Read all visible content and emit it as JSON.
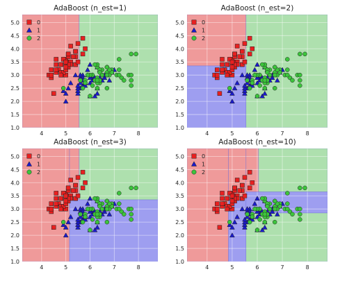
{
  "figure": {
    "layout": "2x2 grid"
  },
  "colors": {
    "region_0": "#ef9a9a",
    "region_1": "#9e9ef0",
    "region_2": "#aee0ae",
    "marker_0": "#e82020",
    "marker_1": "#1a1acc",
    "marker_2": "#3cc43c",
    "grid": "#ffffff",
    "edge": "#222222"
  },
  "chart_data": [
    {
      "type": "scatter",
      "title": "AdaBoost (n_est=1)",
      "xlim": [
        3.2,
        8.8
      ],
      "ylim": [
        1.0,
        5.3
      ],
      "xticks": [
        4,
        5,
        6,
        7,
        8
      ],
      "yticks": [
        1.0,
        1.5,
        2.0,
        2.5,
        3.0,
        3.5,
        4.0,
        4.5,
        5.0
      ],
      "grid": true,
      "legend": "top-left",
      "legend_entries": [
        "0",
        "1",
        "2"
      ],
      "regions": [
        {
          "cls": 0,
          "x": [
            3.2,
            5.55
          ],
          "y": [
            1.0,
            5.3
          ]
        },
        {
          "cls": 2,
          "x": [
            5.55,
            8.8
          ],
          "y": [
            1.0,
            5.3
          ]
        }
      ]
    },
    {
      "type": "scatter",
      "title": "AdaBoost (n_est=2)",
      "xlim": [
        3.2,
        8.8
      ],
      "ylim": [
        1.0,
        5.3
      ],
      "xticks": [
        4,
        5,
        6,
        7,
        8
      ],
      "yticks": [
        1.0,
        1.5,
        2.0,
        2.5,
        3.0,
        3.5,
        4.0,
        4.5,
        5.0
      ],
      "grid": true,
      "legend": "top-left",
      "legend_entries": [
        "0",
        "1",
        "2"
      ],
      "regions": [
        {
          "cls": 0,
          "x": [
            3.2,
            5.55
          ],
          "y": [
            3.35,
            5.3
          ]
        },
        {
          "cls": 1,
          "x": [
            3.2,
            5.55
          ],
          "y": [
            1.0,
            3.35
          ]
        },
        {
          "cls": 2,
          "x": [
            5.55,
            8.8
          ],
          "y": [
            1.0,
            5.3
          ]
        }
      ]
    },
    {
      "type": "scatter",
      "title": "AdaBoost (n_est=3)",
      "xlim": [
        3.2,
        8.8
      ],
      "ylim": [
        1.0,
        5.3
      ],
      "xticks": [
        4,
        5,
        6,
        7,
        8
      ],
      "yticks": [
        1.0,
        1.5,
        2.0,
        2.5,
        3.0,
        3.5,
        4.0,
        4.5,
        5.0
      ],
      "grid": true,
      "legend": "top-left",
      "legend_entries": [
        "0",
        "1",
        "2"
      ],
      "regions": [
        {
          "cls": 0,
          "x": [
            3.2,
            5.15
          ],
          "y": [
            1.0,
            5.3
          ]
        },
        {
          "cls": 0,
          "x": [
            5.15,
            5.55
          ],
          "y": [
            3.35,
            5.3
          ]
        },
        {
          "cls": 2,
          "x": [
            5.55,
            8.8
          ],
          "y": [
            3.35,
            5.3
          ]
        },
        {
          "cls": 1,
          "x": [
            5.15,
            8.8
          ],
          "y": [
            1.0,
            3.35
          ]
        }
      ]
    },
    {
      "type": "scatter",
      "title": "AdaBoost (n_est=10)",
      "xlim": [
        3.2,
        8.8
      ],
      "ylim": [
        1.0,
        5.3
      ],
      "xticks": [
        4,
        5,
        6,
        7,
        8
      ],
      "yticks": [
        1.0,
        1.5,
        2.0,
        2.5,
        3.0,
        3.5,
        4.0,
        4.5,
        5.0
      ],
      "grid": true,
      "legend": "top-left",
      "legend_entries": [
        "0",
        "1",
        "2"
      ],
      "regions": [
        {
          "cls": 0,
          "x": [
            3.2,
            4.85
          ],
          "y": [
            1.0,
            5.3
          ]
        },
        {
          "cls": 0,
          "x": [
            4.85,
            5.55
          ],
          "y": [
            3.35,
            5.3
          ]
        },
        {
          "cls": 1,
          "x": [
            4.85,
            5.55
          ],
          "y": [
            1.0,
            3.35
          ]
        },
        {
          "cls": 0,
          "x": [
            5.55,
            6.05
          ],
          "y": [
            3.65,
            5.3
          ]
        },
        {
          "cls": 2,
          "x": [
            6.05,
            8.8
          ],
          "y": [
            3.65,
            5.3
          ]
        },
        {
          "cls": 1,
          "x": [
            5.55,
            8.8
          ],
          "y": [
            2.85,
            3.65
          ]
        },
        {
          "cls": 2,
          "x": [
            5.55,
            8.8
          ],
          "y": [
            1.0,
            2.85
          ]
        }
      ]
    }
  ],
  "points": [
    {
      "x": 5.1,
      "y": 3.5,
      "c": 0
    },
    {
      "x": 4.9,
      "y": 3.0,
      "c": 0
    },
    {
      "x": 4.7,
      "y": 3.2,
      "c": 0
    },
    {
      "x": 4.6,
      "y": 3.1,
      "c": 0
    },
    {
      "x": 5.0,
      "y": 3.6,
      "c": 0
    },
    {
      "x": 5.4,
      "y": 3.9,
      "c": 0
    },
    {
      "x": 4.6,
      "y": 3.4,
      "c": 0
    },
    {
      "x": 5.0,
      "y": 3.4,
      "c": 0
    },
    {
      "x": 4.4,
      "y": 2.9,
      "c": 0
    },
    {
      "x": 4.9,
      "y": 3.1,
      "c": 0
    },
    {
      "x": 5.4,
      "y": 3.7,
      "c": 0
    },
    {
      "x": 4.8,
      "y": 3.4,
      "c": 0
    },
    {
      "x": 4.8,
      "y": 3.0,
      "c": 0
    },
    {
      "x": 4.3,
      "y": 3.0,
      "c": 0
    },
    {
      "x": 5.8,
      "y": 4.0,
      "c": 0
    },
    {
      "x": 5.7,
      "y": 4.4,
      "c": 0
    },
    {
      "x": 5.4,
      "y": 3.9,
      "c": 0
    },
    {
      "x": 5.1,
      "y": 3.5,
      "c": 0
    },
    {
      "x": 5.7,
      "y": 3.8,
      "c": 0
    },
    {
      "x": 5.1,
      "y": 3.8,
      "c": 0
    },
    {
      "x": 5.4,
      "y": 3.4,
      "c": 0
    },
    {
      "x": 5.1,
      "y": 3.7,
      "c": 0
    },
    {
      "x": 4.6,
      "y": 3.6,
      "c": 0
    },
    {
      "x": 5.1,
      "y": 3.3,
      "c": 0
    },
    {
      "x": 4.8,
      "y": 3.4,
      "c": 0
    },
    {
      "x": 5.0,
      "y": 3.0,
      "c": 0
    },
    {
      "x": 5.0,
      "y": 3.4,
      "c": 0
    },
    {
      "x": 5.2,
      "y": 3.5,
      "c": 0
    },
    {
      "x": 5.2,
      "y": 3.4,
      "c": 0
    },
    {
      "x": 4.7,
      "y": 3.2,
      "c": 0
    },
    {
      "x": 4.8,
      "y": 3.1,
      "c": 0
    },
    {
      "x": 5.4,
      "y": 3.4,
      "c": 0
    },
    {
      "x": 5.2,
      "y": 4.1,
      "c": 0
    },
    {
      "x": 5.5,
      "y": 4.2,
      "c": 0
    },
    {
      "x": 4.9,
      "y": 3.1,
      "c": 0
    },
    {
      "x": 5.0,
      "y": 3.2,
      "c": 0
    },
    {
      "x": 5.5,
      "y": 3.5,
      "c": 0
    },
    {
      "x": 4.9,
      "y": 3.6,
      "c": 0
    },
    {
      "x": 4.4,
      "y": 3.0,
      "c": 0
    },
    {
      "x": 5.1,
      "y": 3.4,
      "c": 0
    },
    {
      "x": 5.0,
      "y": 3.5,
      "c": 0
    },
    {
      "x": 4.5,
      "y": 2.3,
      "c": 0
    },
    {
      "x": 4.4,
      "y": 3.2,
      "c": 0
    },
    {
      "x": 5.0,
      "y": 3.5,
      "c": 0
    },
    {
      "x": 5.1,
      "y": 3.8,
      "c": 0
    },
    {
      "x": 4.8,
      "y": 3.0,
      "c": 0
    },
    {
      "x": 5.1,
      "y": 3.8,
      "c": 0
    },
    {
      "x": 4.6,
      "y": 3.2,
      "c": 0
    },
    {
      "x": 5.3,
      "y": 3.7,
      "c": 0
    },
    {
      "x": 5.0,
      "y": 3.3,
      "c": 0
    },
    {
      "x": 7.0,
      "y": 3.2,
      "c": 1
    },
    {
      "x": 6.4,
      "y": 3.2,
      "c": 1
    },
    {
      "x": 6.9,
      "y": 3.1,
      "c": 1
    },
    {
      "x": 5.5,
      "y": 2.3,
      "c": 1
    },
    {
      "x": 6.5,
      "y": 2.8,
      "c": 1
    },
    {
      "x": 5.7,
      "y": 2.8,
      "c": 1
    },
    {
      "x": 6.3,
      "y": 3.3,
      "c": 1
    },
    {
      "x": 4.9,
      "y": 2.4,
      "c": 1
    },
    {
      "x": 6.6,
      "y": 2.9,
      "c": 1
    },
    {
      "x": 5.2,
      "y": 2.7,
      "c": 1
    },
    {
      "x": 5.0,
      "y": 2.0,
      "c": 1
    },
    {
      "x": 5.9,
      "y": 3.0,
      "c": 1
    },
    {
      "x": 6.0,
      "y": 2.2,
      "c": 1
    },
    {
      "x": 6.1,
      "y": 2.9,
      "c": 1
    },
    {
      "x": 5.6,
      "y": 2.9,
      "c": 1
    },
    {
      "x": 6.7,
      "y": 3.1,
      "c": 1
    },
    {
      "x": 5.6,
      "y": 3.0,
      "c": 1
    },
    {
      "x": 5.8,
      "y": 2.7,
      "c": 1
    },
    {
      "x": 6.2,
      "y": 2.2,
      "c": 1
    },
    {
      "x": 5.6,
      "y": 2.5,
      "c": 1
    },
    {
      "x": 5.9,
      "y": 3.2,
      "c": 1
    },
    {
      "x": 6.1,
      "y": 2.8,
      "c": 1
    },
    {
      "x": 6.3,
      "y": 2.5,
      "c": 1
    },
    {
      "x": 6.1,
      "y": 2.8,
      "c": 1
    },
    {
      "x": 6.4,
      "y": 2.9,
      "c": 1
    },
    {
      "x": 6.6,
      "y": 3.0,
      "c": 1
    },
    {
      "x": 6.8,
      "y": 2.8,
      "c": 1
    },
    {
      "x": 6.7,
      "y": 3.0,
      "c": 1
    },
    {
      "x": 6.0,
      "y": 2.9,
      "c": 1
    },
    {
      "x": 5.7,
      "y": 2.6,
      "c": 1
    },
    {
      "x": 5.5,
      "y": 2.4,
      "c": 1
    },
    {
      "x": 5.5,
      "y": 2.4,
      "c": 1
    },
    {
      "x": 5.8,
      "y": 2.7,
      "c": 1
    },
    {
      "x": 6.0,
      "y": 2.7,
      "c": 1
    },
    {
      "x": 5.4,
      "y": 3.0,
      "c": 1
    },
    {
      "x": 6.0,
      "y": 3.4,
      "c": 1
    },
    {
      "x": 6.7,
      "y": 3.1,
      "c": 1
    },
    {
      "x": 6.3,
      "y": 2.3,
      "c": 1
    },
    {
      "x": 5.6,
      "y": 3.0,
      "c": 1
    },
    {
      "x": 5.5,
      "y": 2.5,
      "c": 1
    },
    {
      "x": 5.5,
      "y": 2.6,
      "c": 1
    },
    {
      "x": 6.1,
      "y": 3.0,
      "c": 1
    },
    {
      "x": 5.8,
      "y": 2.6,
      "c": 1
    },
    {
      "x": 5.0,
      "y": 2.3,
      "c": 1
    },
    {
      "x": 5.6,
      "y": 2.7,
      "c": 1
    },
    {
      "x": 5.7,
      "y": 3.0,
      "c": 1
    },
    {
      "x": 5.7,
      "y": 2.9,
      "c": 1
    },
    {
      "x": 6.2,
      "y": 2.9,
      "c": 1
    },
    {
      "x": 5.1,
      "y": 2.5,
      "c": 1
    },
    {
      "x": 5.7,
      "y": 2.8,
      "c": 1
    },
    {
      "x": 6.3,
      "y": 3.3,
      "c": 2
    },
    {
      "x": 5.8,
      "y": 2.7,
      "c": 2
    },
    {
      "x": 7.1,
      "y": 3.0,
      "c": 2
    },
    {
      "x": 6.3,
      "y": 2.9,
      "c": 2
    },
    {
      "x": 6.5,
      "y": 3.0,
      "c": 2
    },
    {
      "x": 7.6,
      "y": 3.0,
      "c": 2
    },
    {
      "x": 4.9,
      "y": 2.5,
      "c": 2
    },
    {
      "x": 7.3,
      "y": 2.9,
      "c": 2
    },
    {
      "x": 6.7,
      "y": 2.5,
      "c": 2
    },
    {
      "x": 7.2,
      "y": 3.6,
      "c": 2
    },
    {
      "x": 6.5,
      "y": 3.2,
      "c": 2
    },
    {
      "x": 6.4,
      "y": 2.7,
      "c": 2
    },
    {
      "x": 6.8,
      "y": 3.0,
      "c": 2
    },
    {
      "x": 5.7,
      "y": 2.5,
      "c": 2
    },
    {
      "x": 5.8,
      "y": 2.8,
      "c": 2
    },
    {
      "x": 6.4,
      "y": 3.2,
      "c": 2
    },
    {
      "x": 6.5,
      "y": 3.0,
      "c": 2
    },
    {
      "x": 7.7,
      "y": 3.8,
      "c": 2
    },
    {
      "x": 7.7,
      "y": 2.6,
      "c": 2
    },
    {
      "x": 6.0,
      "y": 2.2,
      "c": 2
    },
    {
      "x": 6.9,
      "y": 3.2,
      "c": 2
    },
    {
      "x": 5.6,
      "y": 2.8,
      "c": 2
    },
    {
      "x": 7.7,
      "y": 2.8,
      "c": 2
    },
    {
      "x": 6.3,
      "y": 2.7,
      "c": 2
    },
    {
      "x": 6.7,
      "y": 3.3,
      "c": 2
    },
    {
      "x": 7.2,
      "y": 3.2,
      "c": 2
    },
    {
      "x": 6.2,
      "y": 2.8,
      "c": 2
    },
    {
      "x": 6.1,
      "y": 3.0,
      "c": 2
    },
    {
      "x": 6.4,
      "y": 2.8,
      "c": 2
    },
    {
      "x": 7.2,
      "y": 3.0,
      "c": 2
    },
    {
      "x": 7.4,
      "y": 2.8,
      "c": 2
    },
    {
      "x": 7.9,
      "y": 3.8,
      "c": 2
    },
    {
      "x": 6.4,
      "y": 2.8,
      "c": 2
    },
    {
      "x": 6.3,
      "y": 2.8,
      "c": 2
    },
    {
      "x": 6.1,
      "y": 2.6,
      "c": 2
    },
    {
      "x": 7.7,
      "y": 3.0,
      "c": 2
    },
    {
      "x": 6.3,
      "y": 3.4,
      "c": 2
    },
    {
      "x": 6.4,
      "y": 3.1,
      "c": 2
    },
    {
      "x": 6.0,
      "y": 3.0,
      "c": 2
    },
    {
      "x": 6.9,
      "y": 3.1,
      "c": 2
    },
    {
      "x": 6.7,
      "y": 3.1,
      "c": 2
    },
    {
      "x": 6.9,
      "y": 3.1,
      "c": 2
    },
    {
      "x": 5.8,
      "y": 2.7,
      "c": 2
    },
    {
      "x": 6.8,
      "y": 3.2,
      "c": 2
    },
    {
      "x": 6.7,
      "y": 3.3,
      "c": 2
    },
    {
      "x": 6.7,
      "y": 3.0,
      "c": 2
    },
    {
      "x": 6.3,
      "y": 2.5,
      "c": 2
    },
    {
      "x": 6.5,
      "y": 3.0,
      "c": 2
    },
    {
      "x": 6.2,
      "y": 3.4,
      "c": 2
    },
    {
      "x": 5.9,
      "y": 3.0,
      "c": 2
    }
  ]
}
